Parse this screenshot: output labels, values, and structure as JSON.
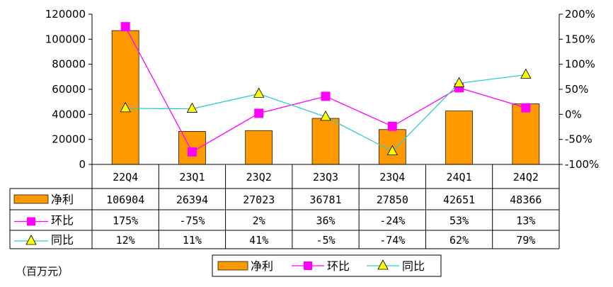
{
  "chart_data": {
    "type": "bar",
    "categories": [
      "22Q4",
      "23Q1",
      "23Q2",
      "23Q3",
      "23Q4",
      "24Q1",
      "24Q2"
    ],
    "series": [
      {
        "name": "净利",
        "kind": "bar",
        "axis": "left",
        "color": "#FF9900",
        "values": [
          106904,
          26394,
          27023,
          36781,
          27850,
          42651,
          48366
        ]
      },
      {
        "name": "环比",
        "kind": "line",
        "axis": "right",
        "color": "#FF00FF",
        "marker": "square",
        "values": [
          175,
          -75,
          2,
          36,
          -24,
          53,
          13
        ]
      },
      {
        "name": "同比",
        "kind": "line",
        "axis": "right",
        "color": "#33CCCC",
        "marker": "triangle",
        "marker_color": "#FFFF00",
        "values": [
          12,
          11,
          41,
          -5,
          -74,
          62,
          79
        ]
      }
    ],
    "table_rows": [
      {
        "label": "净利",
        "cells": [
          "106904",
          "26394",
          "27023",
          "36781",
          "27850",
          "42651",
          "48366"
        ]
      },
      {
        "label": "环比",
        "cells": [
          "175%",
          "-75%",
          "2%",
          "36%",
          "-24%",
          "53%",
          "13%"
        ]
      },
      {
        "label": "同比",
        "cells": [
          "12%",
          "11%",
          "41%",
          "-5%",
          "-74%",
          "62%",
          "79%"
        ]
      }
    ],
    "y_left": {
      "min": 0,
      "max": 120000,
      "step": 20000,
      "ticks": [
        "0",
        "20000",
        "40000",
        "60000",
        "80000",
        "100000",
        "120000"
      ]
    },
    "y_right": {
      "min": -100,
      "max": 200,
      "step": 50,
      "ticks": [
        "-100%",
        "-50%",
        "0%",
        "50%",
        "100%",
        "150%",
        "200%"
      ]
    },
    "legend": {
      "position": "bottom",
      "items": [
        "净利",
        "环比",
        "同比"
      ]
    },
    "unit_label": "（百万元）",
    "grid": false,
    "title": "",
    "xlabel": "",
    "ylabel": ""
  }
}
